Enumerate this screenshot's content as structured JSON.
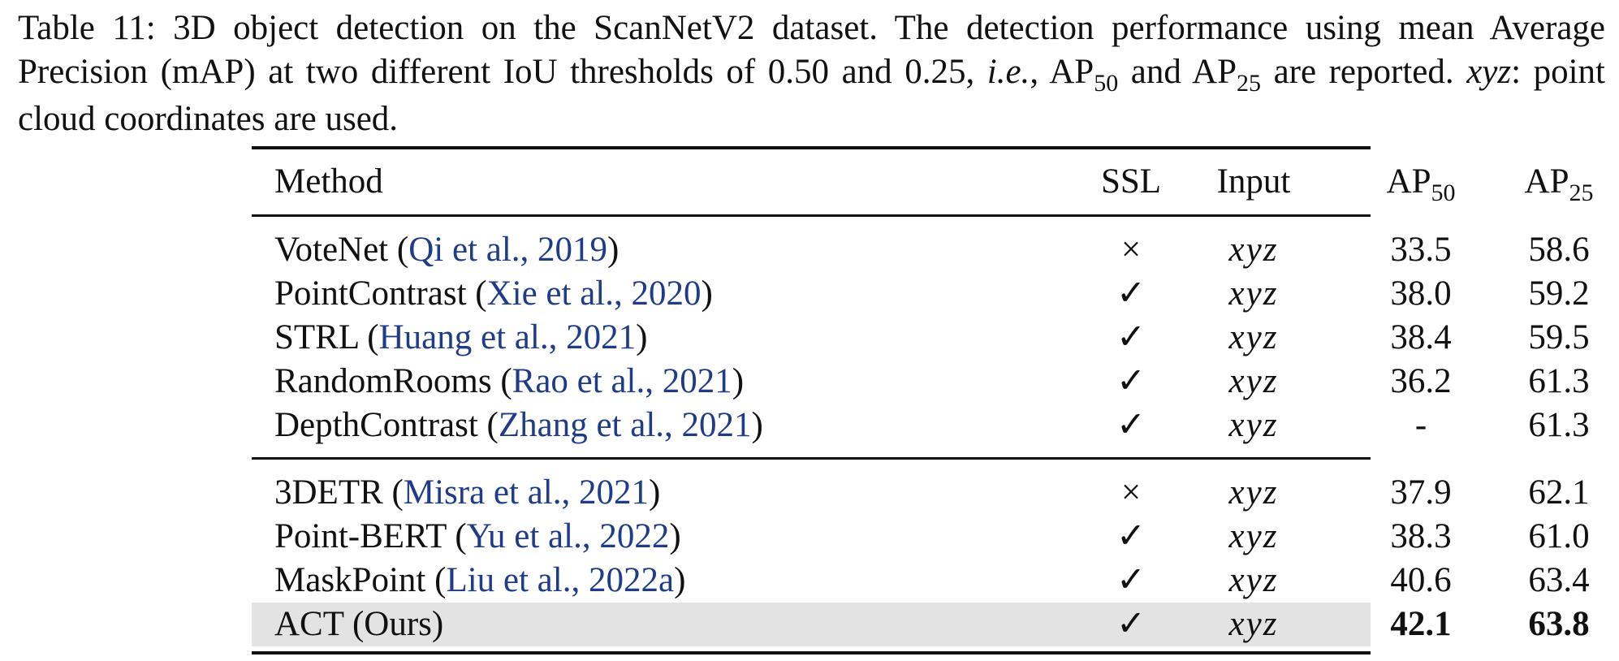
{
  "caption": {
    "prefix": "Table 11: 3D object detection on the ScanNetV2 dataset. The detection performance using mean Average Precision (mAP) at two different IoU thresholds of 0.50 and 0.25, ",
    "ie": "i.e.",
    "comma": ", ",
    "ap": "AP",
    "sub50": "50",
    "and": " and ",
    "sub25": "25",
    "suffix": " are reported. ",
    "xyz": "xyz",
    "tail": ": point cloud coordinates are used."
  },
  "table": {
    "headers": {
      "method": "Method",
      "ssl": "SSL",
      "input": "Input",
      "ap": "AP",
      "sub50": "50",
      "sub25": "25"
    },
    "group1": [
      {
        "name": "VoteNet (",
        "cite": "Qi et al., 2019",
        "close": ")",
        "ssl": "×",
        "input": "xyz",
        "ap50": "33.5",
        "ap25": "58.6"
      },
      {
        "name": "PointContrast (",
        "cite": "Xie et al., 2020",
        "close": ")",
        "ssl": "✓",
        "input": "xyz",
        "ap50": "38.0",
        "ap25": "59.2"
      },
      {
        "name": "STRL (",
        "cite": "Huang et al., 2021",
        "close": ")",
        "ssl": "✓",
        "input": "xyz",
        "ap50": "38.4",
        "ap25": "59.5"
      },
      {
        "name": "RandomRooms (",
        "cite": "Rao et al., 2021",
        "close": ")",
        "ssl": "✓",
        "input": "xyz",
        "ap50": "36.2",
        "ap25": "61.3"
      },
      {
        "name": "DepthContrast (",
        "cite": "Zhang et al., 2021",
        "close": ")",
        "ssl": "✓",
        "input": "xyz",
        "ap50": "-",
        "ap25": "61.3"
      }
    ],
    "group2": [
      {
        "name": "3DETR (",
        "cite": "Misra et al., 2021",
        "close": ")",
        "ssl": "×",
        "input": "xyz",
        "ap50": "37.9",
        "ap25": "62.1"
      },
      {
        "name": "Point-BERT (",
        "cite": "Yu et al., 2022",
        "close": ")",
        "ssl": "✓",
        "input": "xyz",
        "ap50": "38.3",
        "ap25": "61.0"
      },
      {
        "name": "MaskPoint (",
        "cite": "Liu et al., 2022a",
        "close": ")",
        "ssl": "✓",
        "input": "xyz",
        "ap50": "40.6",
        "ap25": "63.4"
      }
    ],
    "ours": {
      "name": "ACT (Ours)",
      "ssl": "✓",
      "input": "xyz",
      "ap50": "42.1",
      "ap25": "63.8"
    }
  },
  "colors": {
    "citation": "#1f3c8a",
    "highlight": "#e3e3e3"
  }
}
